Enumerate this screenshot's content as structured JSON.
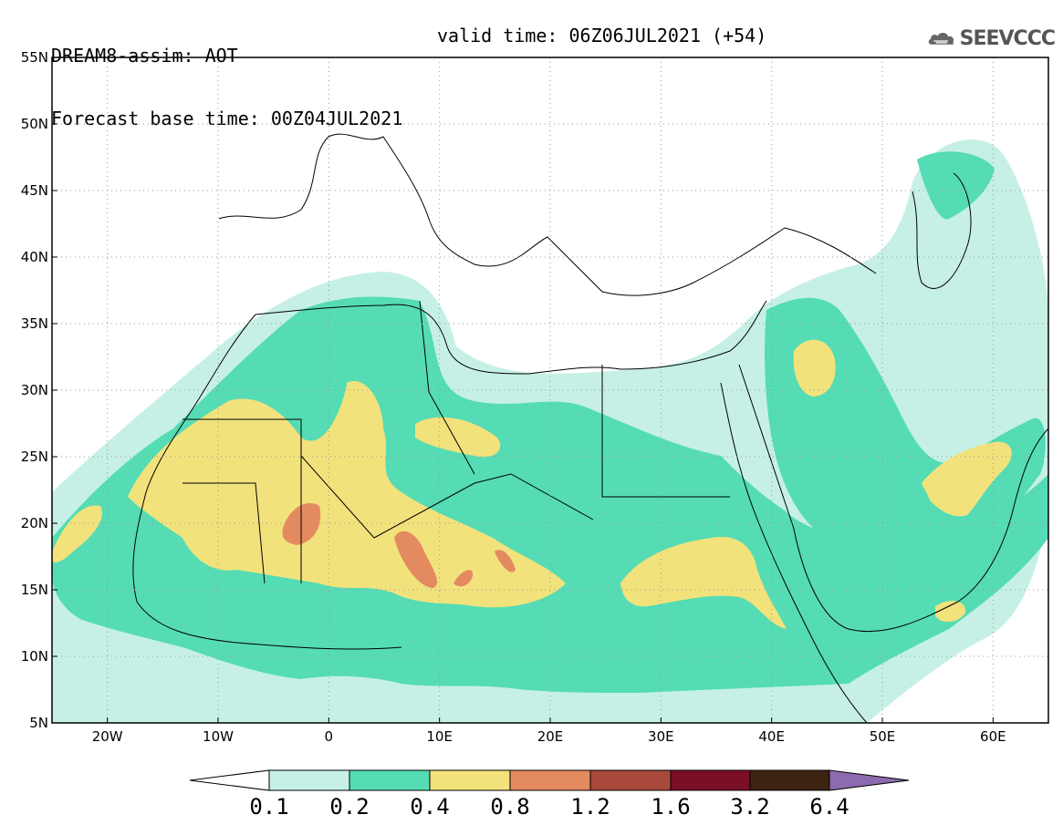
{
  "title": {
    "line1": "DREAM8-assim: AOT",
    "line2": "Forecast base time: 00Z04JUL2021",
    "valid": "valid time: 06Z06JUL2021 (+54)"
  },
  "logo": {
    "text": "SEEVCCC",
    "icon": "cloud-icon"
  },
  "map": {
    "lon_range": [
      -25,
      65
    ],
    "lat_range": [
      5,
      55
    ],
    "lat_ticks": [
      {
        "value": 55,
        "label": "55N"
      },
      {
        "value": 50,
        "label": "50N"
      },
      {
        "value": 45,
        "label": "45N"
      },
      {
        "value": 40,
        "label": "40N"
      },
      {
        "value": 35,
        "label": "35N"
      },
      {
        "value": 30,
        "label": "30N"
      },
      {
        "value": 25,
        "label": "25N"
      },
      {
        "value": 20,
        "label": "20N"
      },
      {
        "value": 15,
        "label": "15N"
      },
      {
        "value": 10,
        "label": "10N"
      },
      {
        "value": 5,
        "label": "5N"
      }
    ],
    "lon_ticks": [
      {
        "value": -20,
        "label": "20W"
      },
      {
        "value": -10,
        "label": "10W"
      },
      {
        "value": 0,
        "label": "0"
      },
      {
        "value": 10,
        "label": "10E"
      },
      {
        "value": 20,
        "label": "20E"
      },
      {
        "value": 30,
        "label": "30E"
      },
      {
        "value": 40,
        "label": "40E"
      },
      {
        "value": 50,
        "label": "50E"
      },
      {
        "value": 60,
        "label": "60E"
      }
    ],
    "grid": true
  },
  "colorbar": {
    "labels": [
      "0.1",
      "0.2",
      "0.4",
      "0.8",
      "1.2",
      "1.6",
      "3.2",
      "6.4"
    ],
    "colors": {
      "under": "#ffffff",
      "c1": "#c6f0e6",
      "c2": "#55dcb4",
      "c3": "#f2e27c",
      "c4": "#e48a60",
      "c5": "#a8493c",
      "c6": "#7a0f26",
      "c7": "#3c2312",
      "over": "#8e6ab0"
    }
  }
}
